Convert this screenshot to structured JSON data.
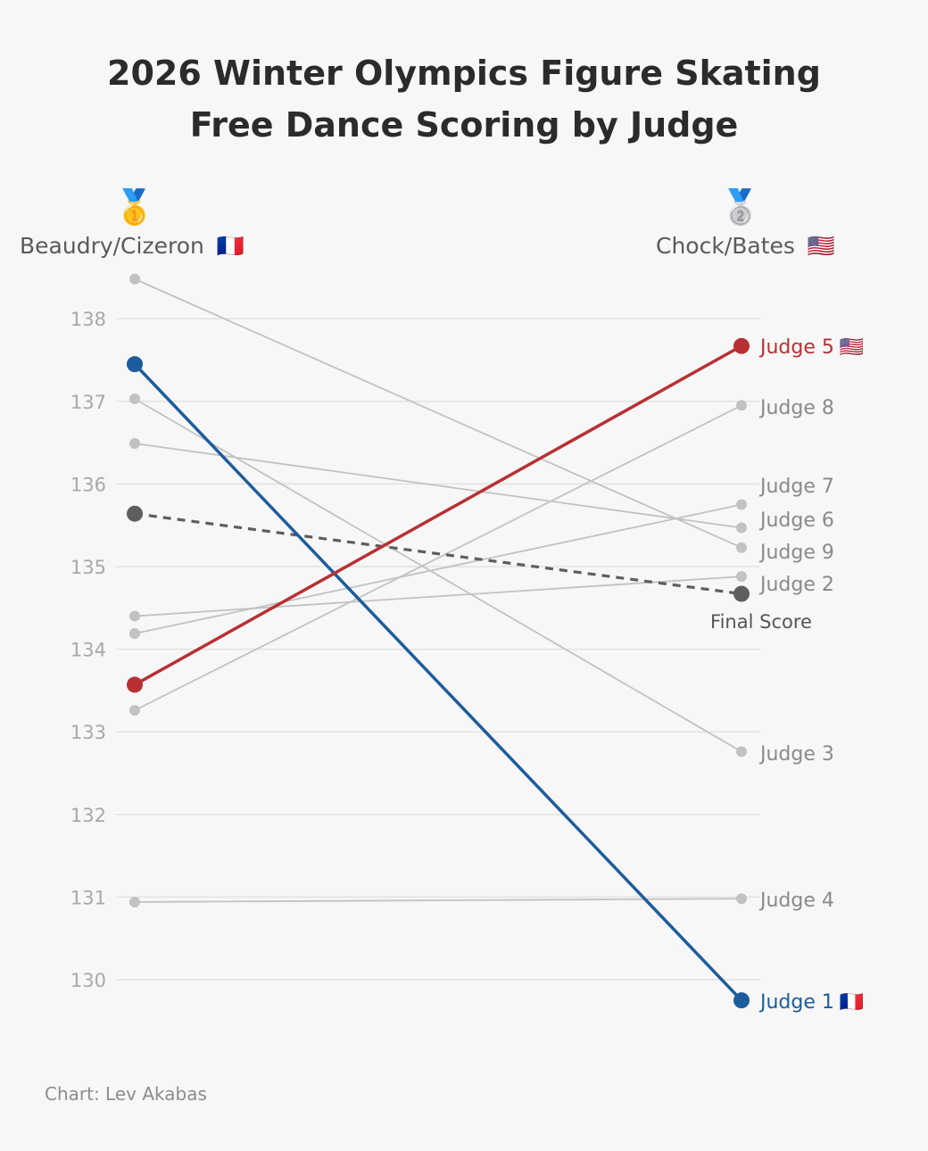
{
  "chart_data": {
    "type": "slope",
    "title": "2026 Winter Olympics Figure Skating",
    "subtitle": "Free Dance Scoring by Judge",
    "left_column": {
      "label": "Beaudry/Cizeron",
      "flag": "🇫🇷",
      "medal": "🥇"
    },
    "right_column": {
      "label": "Chock/Bates",
      "flag": "🇺🇸",
      "medal": "🥈"
    },
    "ylim": [
      129.5,
      138.6
    ],
    "yticks": [
      130,
      131,
      132,
      133,
      134,
      135,
      136,
      137,
      138
    ],
    "grid": true,
    "series": [
      {
        "name": "Judge 1",
        "flag": "🇫🇷",
        "left": 137.45,
        "right": 129.75,
        "color": "#1d5c9c",
        "highlight": true
      },
      {
        "name": "Judge 2",
        "left": 134.4,
        "right": 134.88,
        "color": "#c2c2c2"
      },
      {
        "name": "Judge 3",
        "left": 137.03,
        "right": 132.76,
        "color": "#c2c2c2"
      },
      {
        "name": "Judge 4",
        "left": 130.94,
        "right": 130.98,
        "color": "#c2c2c2"
      },
      {
        "name": "Judge 5",
        "flag": "🇺🇸",
        "left": 133.57,
        "right": 137.67,
        "color": "#b83033",
        "highlight": true
      },
      {
        "name": "Judge 6",
        "left": 136.49,
        "right": 135.47,
        "color": "#c2c2c2"
      },
      {
        "name": "Judge 7",
        "left": 134.19,
        "right": 135.75,
        "color": "#c2c2c2"
      },
      {
        "name": "Judge 8",
        "left": 133.26,
        "right": 136.95,
        "color": "#c2c2c2"
      },
      {
        "name": "Judge 9",
        "left": 138.48,
        "right": 135.23,
        "color": "#c2c2c2"
      }
    ],
    "final_score": {
      "name": "Final Score",
      "left": 135.64,
      "right": 134.67,
      "color": "#5e5e5e",
      "dashed": true
    },
    "credit": "Chart: Lev Akabas"
  }
}
